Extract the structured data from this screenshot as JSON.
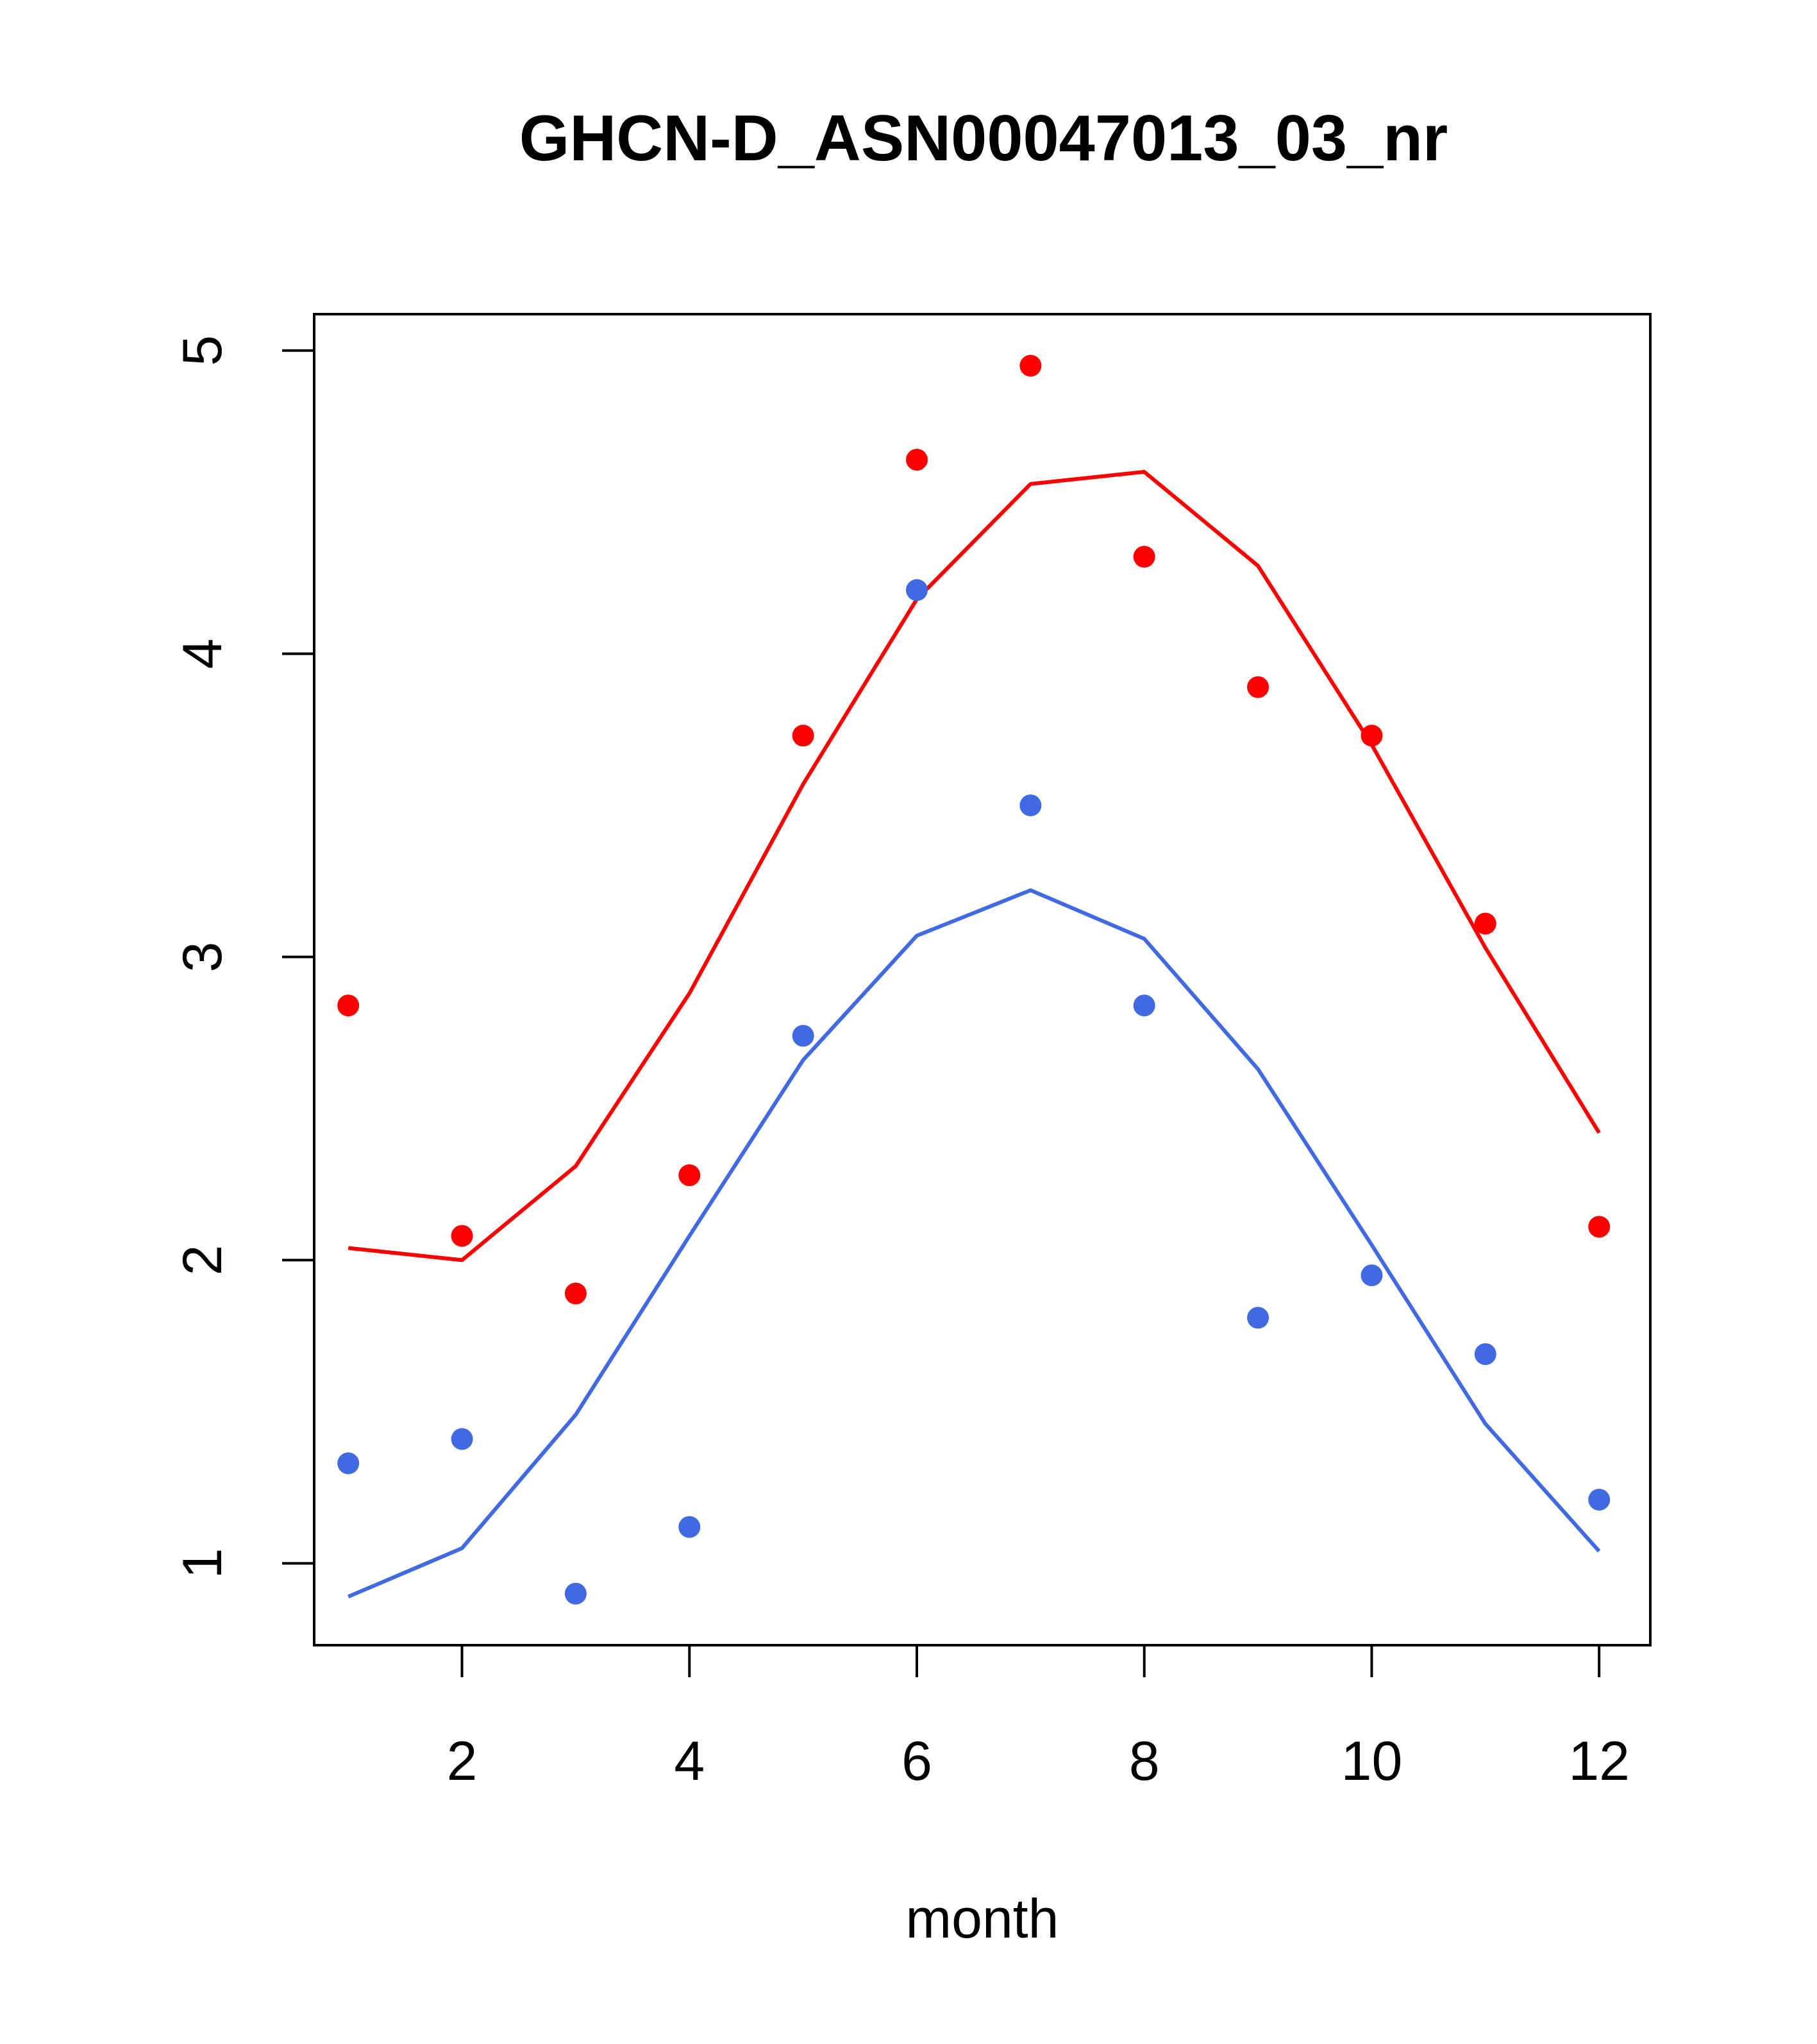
{
  "chart_data": {
    "type": "scatter",
    "title": "GHCN-D_ASN00047013_03_nr",
    "xlabel": "month",
    "ylabel": "",
    "xlim": [
      0.7,
      12.45
    ],
    "ylim": [
      0.73,
      5.12
    ],
    "x_ticks": [
      2,
      4,
      6,
      8,
      10,
      12
    ],
    "y_ticks": [
      1,
      2,
      3,
      4,
      5
    ],
    "x_tick_labels": [
      "2",
      "4",
      "6",
      "8",
      "10",
      "12"
    ],
    "y_tick_labels": [
      "1",
      "2",
      "3",
      "4",
      "5"
    ],
    "grid": false,
    "legend": "none",
    "series": [
      {
        "kind": "points",
        "color": "#ff0000",
        "x": [
          1,
          2,
          3,
          4,
          5,
          6,
          7,
          8,
          9,
          10,
          11,
          12
        ],
        "values": [
          2.84,
          2.08,
          1.89,
          2.28,
          3.73,
          4.64,
          4.95,
          4.32,
          3.89,
          3.73,
          3.11,
          2.11
        ]
      },
      {
        "kind": "line",
        "color": "#ff0000",
        "x": [
          1,
          2,
          3,
          4,
          5,
          6,
          7,
          8,
          9,
          10,
          11,
          12
        ],
        "values": [
          2.04,
          2.0,
          2.31,
          2.88,
          3.57,
          4.18,
          4.56,
          4.6,
          4.29,
          3.7,
          3.03,
          2.42
        ]
      },
      {
        "kind": "points",
        "color": "#4169e1",
        "x": [
          1,
          2,
          3,
          4,
          5,
          6,
          7,
          8,
          9,
          10,
          11,
          12
        ],
        "values": [
          1.33,
          1.41,
          0.9,
          1.12,
          2.74,
          4.21,
          3.5,
          2.84,
          1.81,
          1.95,
          1.69,
          1.21
        ]
      },
      {
        "kind": "line",
        "color": "#4169e1",
        "x": [
          1,
          2,
          3,
          4,
          5,
          6,
          7,
          8,
          9,
          10,
          11,
          12
        ],
        "values": [
          0.89,
          1.05,
          1.49,
          2.08,
          2.66,
          3.07,
          3.22,
          3.06,
          2.63,
          2.05,
          1.46,
          1.04
        ]
      }
    ]
  }
}
